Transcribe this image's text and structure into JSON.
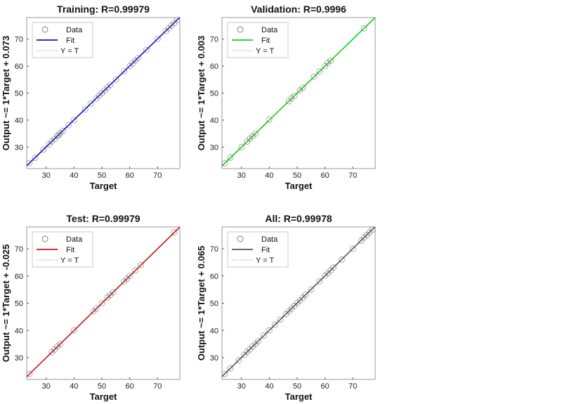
{
  "chart_data": [
    {
      "type": "scatter",
      "title": "Training: R=0.99979",
      "xlabel": "Target",
      "ylabel": "Output ~= 1*Target + 0.073",
      "xlim": [
        23,
        78
      ],
      "ylim": [
        22,
        78
      ],
      "xticks": [
        30,
        40,
        50,
        60,
        70
      ],
      "yticks": [
        30,
        40,
        50,
        60,
        70
      ],
      "fit_color": "#1010d0",
      "fit": {
        "slope": 1,
        "intercept": 0.073
      },
      "series": [
        {
          "name": "Data",
          "x": [
            24,
            26,
            29,
            31,
            32,
            33,
            34,
            34.5,
            35,
            36,
            38,
            40,
            44,
            46,
            48,
            49,
            50,
            51,
            52,
            53,
            55,
            58,
            60,
            61,
            62,
            63,
            66,
            70,
            73,
            74,
            75,
            76,
            77
          ],
          "y": [
            24.1,
            26,
            29.1,
            31,
            32.1,
            33,
            34.2,
            34.4,
            35.1,
            36,
            38.1,
            40,
            44,
            46.1,
            48,
            49.1,
            50,
            51,
            52.1,
            53,
            55,
            58.1,
            60,
            61,
            62.1,
            63,
            66,
            70.1,
            73,
            74,
            75.1,
            76,
            77
          ]
        }
      ],
      "legend": [
        "Data",
        "Fit",
        "Y = T"
      ]
    },
    {
      "type": "scatter",
      "title": "Validation: R=0.9996",
      "xlabel": "Target",
      "ylabel": "Output ~= 1*Target + 0.003",
      "xlim": [
        23,
        78
      ],
      "ylim": [
        22,
        78
      ],
      "xticks": [
        30,
        40,
        50,
        60,
        70
      ],
      "yticks": [
        30,
        40,
        50,
        60,
        70
      ],
      "fit_color": "#10d010",
      "fit": {
        "slope": 1,
        "intercept": 0.003
      },
      "series": [
        {
          "name": "Data",
          "x": [
            24,
            26,
            30,
            32,
            33,
            34,
            35,
            40,
            47,
            48,
            49,
            51,
            52,
            56,
            58,
            60,
            61,
            62,
            74
          ],
          "y": [
            24,
            26.1,
            30,
            32,
            33.1,
            34,
            35,
            40.2,
            47,
            48.1,
            49,
            51,
            52,
            56.1,
            58,
            60,
            61.2,
            62,
            74
          ]
        }
      ],
      "legend": [
        "Data",
        "Fit",
        "Y = T"
      ]
    },
    {
      "type": "scatter",
      "title": "Test: R=0.99979",
      "xlabel": "Target",
      "ylabel": "Output ~= 1*Target + -0.025",
      "xlim": [
        23,
        78
      ],
      "ylim": [
        22,
        78
      ],
      "xticks": [
        30,
        40,
        50,
        60,
        70
      ],
      "yticks": [
        30,
        40,
        50,
        60,
        70
      ],
      "fit_color": "#d01010",
      "fit": {
        "slope": 1,
        "intercept": -0.025
      },
      "series": [
        {
          "name": "Data",
          "x": [
            24,
            32,
            33,
            34,
            35,
            40,
            47,
            48,
            50,
            52,
            53,
            54,
            58,
            59,
            60,
            62,
            64,
            76
          ],
          "y": [
            24,
            32,
            33,
            34.1,
            35,
            40,
            47,
            48,
            50,
            52.1,
            53,
            54,
            58,
            59,
            60,
            62,
            64,
            76
          ]
        }
      ],
      "legend": [
        "Data",
        "Fit",
        "Y = T"
      ]
    },
    {
      "type": "scatter",
      "title": "All: R=0.99978",
      "xlabel": "Target",
      "ylabel": "Output ~= 1*Target + 0.065",
      "xlim": [
        23,
        78
      ],
      "ylim": [
        22,
        78
      ],
      "xticks": [
        30,
        40,
        50,
        60,
        70
      ],
      "yticks": [
        30,
        40,
        50,
        60,
        70
      ],
      "fit_color": "#555555",
      "fit": {
        "slope": 1,
        "intercept": 0.065
      },
      "series": [
        {
          "name": "Data",
          "x": [
            24,
            26,
            29,
            31,
            32,
            33,
            34,
            35,
            36,
            38,
            40,
            42,
            44,
            46,
            47,
            48,
            49,
            50,
            51,
            52,
            53,
            55,
            58,
            60,
            61,
            62,
            63,
            66,
            70,
            73,
            74,
            75,
            76,
            77
          ],
          "y": [
            24,
            26.1,
            29,
            31,
            32.1,
            33,
            34.1,
            35,
            36,
            38.1,
            40,
            42.1,
            44,
            46,
            47.1,
            48,
            49,
            50.1,
            51,
            52,
            53.1,
            55,
            58,
            60.1,
            61,
            62,
            63.1,
            66,
            70,
            73,
            74.1,
            75,
            76,
            77
          ]
        }
      ],
      "legend": [
        "Data",
        "Fit",
        "Y = T"
      ]
    }
  ]
}
